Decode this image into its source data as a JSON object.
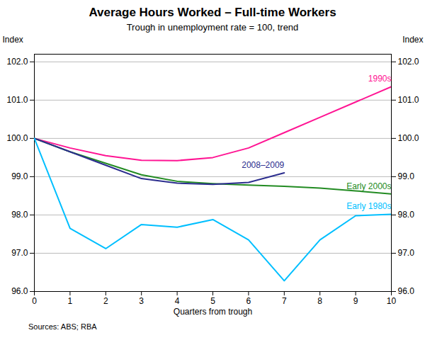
{
  "chart_data": {
    "type": "line",
    "title": "Average Hours Worked – Full-time Workers",
    "subtitle": "Trough in unemployment rate = 100, trend",
    "xlabel": "Quarters from trough",
    "ylabel": "Index",
    "source": "Sources: ABS; RBA",
    "x": [
      0,
      1,
      2,
      3,
      4,
      5,
      6,
      7,
      8,
      9,
      10
    ],
    "series": [
      {
        "name": "1990s",
        "color": "#FF1493",
        "values": [
          100.0,
          99.75,
          99.55,
          99.43,
          99.42,
          99.5,
          99.75,
          100.15,
          100.55,
          100.95,
          101.35
        ]
      },
      {
        "name": "Early 2000s",
        "color": "#228B22",
        "values": [
          100.0,
          99.65,
          99.35,
          99.05,
          98.88,
          98.82,
          98.78,
          98.75,
          98.7,
          98.63,
          98.55
        ]
      },
      {
        "name": "2008–2009",
        "color": "#2B2D8E",
        "values": [
          100.0,
          99.65,
          99.3,
          98.95,
          98.83,
          98.8,
          98.85,
          99.1,
          null,
          null,
          null
        ]
      },
      {
        "name": "Early 1980s",
        "color": "#00BFFF",
        "values": [
          100.0,
          97.65,
          97.12,
          97.75,
          97.68,
          97.88,
          97.35,
          96.28,
          97.35,
          97.98,
          98.02
        ]
      }
    ],
    "xlim": [
      0,
      10
    ],
    "xticks": [
      0,
      1,
      2,
      3,
      4,
      5,
      6,
      7,
      8,
      9,
      10
    ],
    "ylim": [
      96,
      102.2
    ],
    "yticks": [
      96,
      97,
      98,
      99,
      100,
      101,
      102
    ],
    "grid": true
  }
}
